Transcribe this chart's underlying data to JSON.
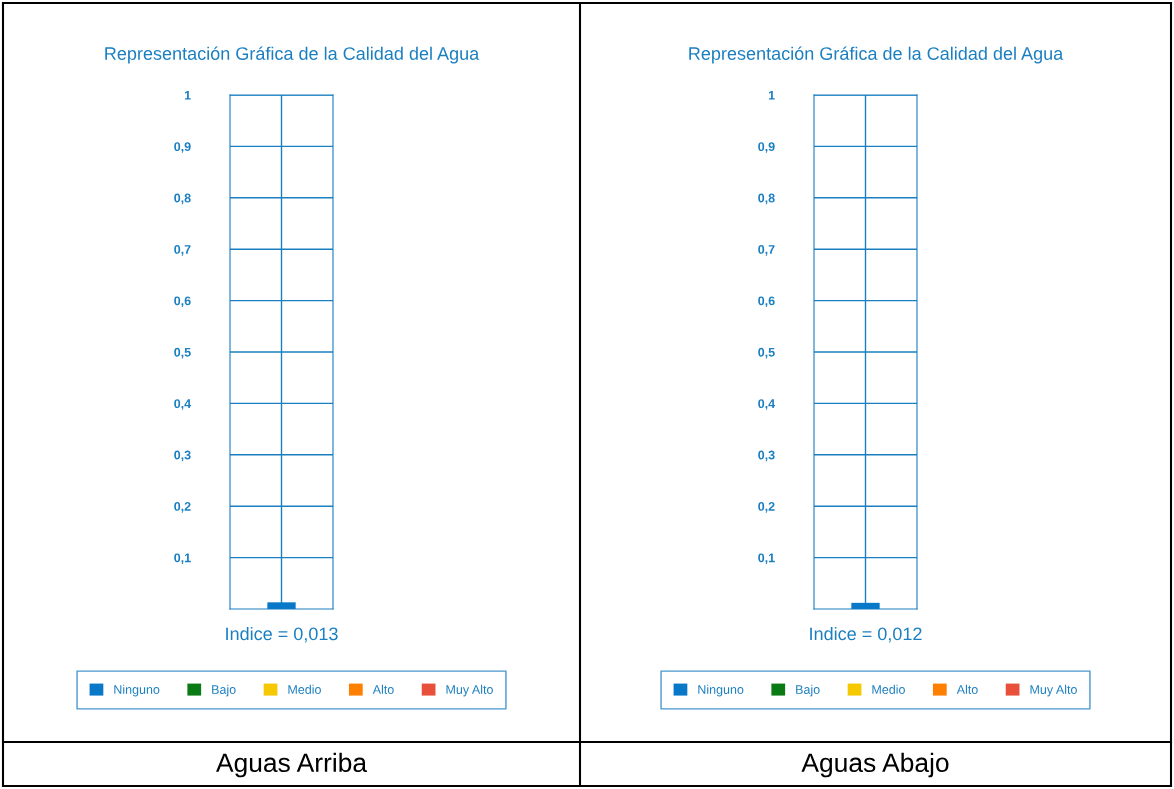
{
  "chart_data": [
    {
      "type": "bar",
      "title": "Representación Gráfica de la Calidad del Agua",
      "categories": [
        null
      ],
      "series": [
        {
          "name": "Ninguno",
          "color": "#0a78c8",
          "values": [
            0.013
          ],
          "value_labels": [
            "Indice = 0,013"
          ]
        },
        {
          "name": "Bajo",
          "color": "#0a7a14",
          "values": [
            null
          ]
        },
        {
          "name": "Medio",
          "color": "#f5c800",
          "values": [
            null
          ]
        },
        {
          "name": "Alto",
          "color": "#ff8000",
          "values": [
            null
          ]
        },
        {
          "name": "Muy Alto",
          "color": "#e8503c",
          "values": [
            null
          ]
        }
      ],
      "ylim": [
        0,
        1
      ],
      "yticks": [
        {
          "value": 0.1,
          "label": "0,1"
        },
        {
          "value": 0.2,
          "label": "0,2"
        },
        {
          "value": 0.3,
          "label": "0,3"
        },
        {
          "value": 0.4,
          "label": "0,4"
        },
        {
          "value": 0.5,
          "label": "0,5"
        },
        {
          "value": 0.6,
          "label": "0,6"
        },
        {
          "value": 0.7,
          "label": "0,7"
        },
        {
          "value": 0.8,
          "label": "0,8"
        },
        {
          "value": 0.9,
          "label": "0,9"
        },
        {
          "value": 1,
          "label": "1"
        }
      ],
      "tick_labels": "y",
      "grid": true,
      "legend": "bottom",
      "annotations": [
        "Aguas Arriba"
      ]
    },
    {
      "type": "bar",
      "title": "Representación Gráfica de la Calidad del Agua",
      "categories": [
        null
      ],
      "series": [
        {
          "name": "Ninguno",
          "color": "#0a78c8",
          "values": [
            0.012
          ],
          "value_labels": [
            "Indice = 0,012"
          ]
        },
        {
          "name": "Bajo",
          "color": "#0a7a14",
          "values": [
            null
          ]
        },
        {
          "name": "Medio",
          "color": "#f5c800",
          "values": [
            null
          ]
        },
        {
          "name": "Alto",
          "color": "#ff8000",
          "values": [
            null
          ]
        },
        {
          "name": "Muy Alto",
          "color": "#e8503c",
          "values": [
            null
          ]
        }
      ],
      "ylim": [
        0,
        1
      ],
      "yticks": [
        {
          "value": 0.1,
          "label": "0,1"
        },
        {
          "value": 0.2,
          "label": "0,2"
        },
        {
          "value": 0.3,
          "label": "0,3"
        },
        {
          "value": 0.4,
          "label": "0,4"
        },
        {
          "value": 0.5,
          "label": "0,5"
        },
        {
          "value": 0.6,
          "label": "0,6"
        },
        {
          "value": 0.7,
          "label": "0,7"
        },
        {
          "value": 0.8,
          "label": "0,8"
        },
        {
          "value": 0.9,
          "label": "0,9"
        },
        {
          "value": 1,
          "label": "1"
        }
      ],
      "tick_labels": "y",
      "grid": true,
      "legend": "bottom",
      "annotations": [
        "Aguas Abajo"
      ]
    }
  ]
}
